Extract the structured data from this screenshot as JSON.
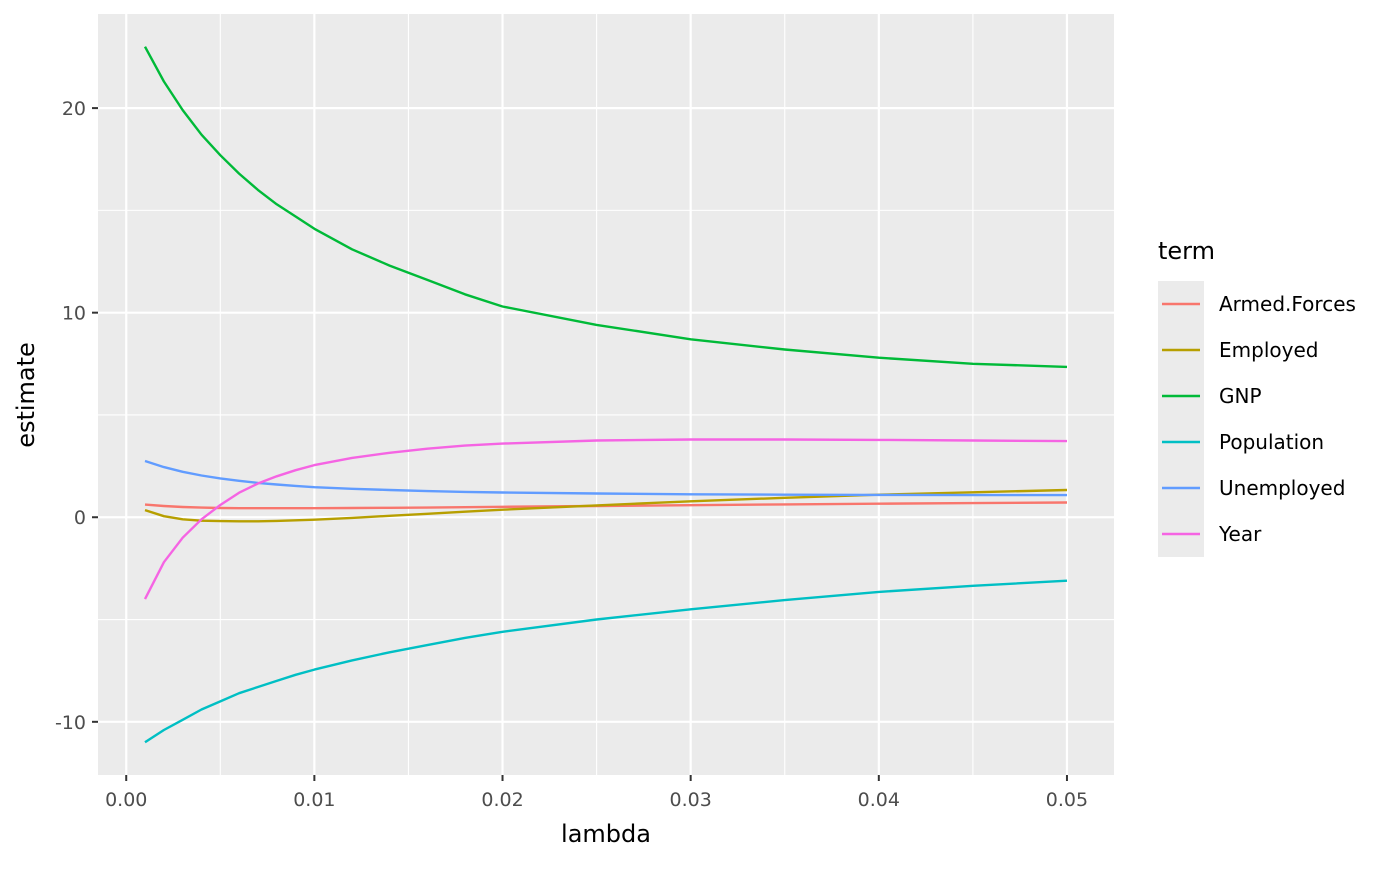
{
  "chart_data": {
    "type": "line",
    "xlabel": "lambda",
    "ylabel": "estimate",
    "xlim": [
      -0.0015,
      0.0525
    ],
    "ylim": [
      -12.6,
      24.6
    ],
    "x_ticks": [
      0.0,
      0.01,
      0.02,
      0.03,
      0.04,
      0.05
    ],
    "x_tick_labels": [
      "0.00",
      "0.01",
      "0.02",
      "0.03",
      "0.04",
      "0.05"
    ],
    "y_ticks": [
      -10,
      0,
      10,
      20
    ],
    "y_tick_labels": [
      "-10",
      "0",
      "10",
      "20"
    ],
    "grid": true,
    "legend": {
      "title": "term",
      "position": "right"
    },
    "x": [
      0.001,
      0.002,
      0.003,
      0.004,
      0.005,
      0.006,
      0.007,
      0.008,
      0.009,
      0.01,
      0.012,
      0.014,
      0.016,
      0.018,
      0.02,
      0.025,
      0.03,
      0.035,
      0.04,
      0.045,
      0.05
    ],
    "series": [
      {
        "name": "Armed.Forces",
        "color": "#F8766D",
        "values": [
          0.62,
          0.55,
          0.5,
          0.47,
          0.45,
          0.44,
          0.44,
          0.44,
          0.44,
          0.44,
          0.45,
          0.46,
          0.47,
          0.49,
          0.51,
          0.55,
          0.59,
          0.63,
          0.66,
          0.69,
          0.72
        ]
      },
      {
        "name": "Employed",
        "color": "#B79F00",
        "values": [
          0.35,
          0.05,
          -0.1,
          -0.17,
          -0.19,
          -0.2,
          -0.2,
          -0.18,
          -0.15,
          -0.12,
          -0.03,
          0.07,
          0.17,
          0.27,
          0.37,
          0.58,
          0.78,
          0.95,
          1.1,
          1.22,
          1.33
        ]
      },
      {
        "name": "GNP",
        "color": "#00BA38",
        "values": [
          23.0,
          21.3,
          19.9,
          18.7,
          17.7,
          16.8,
          16.0,
          15.3,
          14.7,
          14.1,
          13.1,
          12.3,
          11.6,
          10.9,
          10.3,
          9.4,
          8.7,
          8.2,
          7.8,
          7.5,
          7.35
        ]
      },
      {
        "name": "Population",
        "color": "#00BFC4",
        "values": [
          -11.0,
          -10.4,
          -9.9,
          -9.4,
          -9.0,
          -8.6,
          -8.3,
          -8.0,
          -7.7,
          -7.45,
          -7.0,
          -6.6,
          -6.25,
          -5.9,
          -5.6,
          -5.0,
          -4.5,
          -4.05,
          -3.65,
          -3.35,
          -3.1
        ]
      },
      {
        "name": "Unemployed",
        "color": "#619CFF",
        "values": [
          2.75,
          2.45,
          2.22,
          2.04,
          1.9,
          1.78,
          1.68,
          1.6,
          1.53,
          1.47,
          1.39,
          1.33,
          1.28,
          1.24,
          1.21,
          1.16,
          1.12,
          1.1,
          1.09,
          1.08,
          1.08
        ]
      },
      {
        "name": "Year",
        "color": "#F564E3",
        "values": [
          -4.0,
          -2.2,
          -1.0,
          -0.1,
          0.6,
          1.2,
          1.65,
          2.0,
          2.3,
          2.55,
          2.9,
          3.15,
          3.35,
          3.5,
          3.6,
          3.75,
          3.8,
          3.8,
          3.78,
          3.75,
          3.72
        ]
      }
    ]
  }
}
